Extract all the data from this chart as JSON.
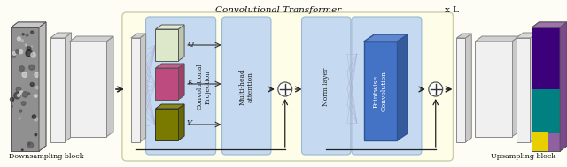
{
  "title": "Convolutional Transformer",
  "xl_label": "x L",
  "downsampling_label": "Downsampling block",
  "upsampling_label": "Upsampling block",
  "conv_proj_label": "Convolutional\nProjection",
  "multihead_label": "Multi-head\nattention",
  "norm_label": "Norm layer",
  "pointwise_label": "Pointwise\nConvolution",
  "q_label": "Q",
  "k_label": "K",
  "v_label": "V",
  "bg_color": "#FDFDF5",
  "transformer_box_color": "#FDFDE8",
  "transformer_box_edge": "#CCCCAA",
  "light_blue": "#C5D9F1",
  "light_blue_edge": "#9BB8D4",
  "blue_block_face": "#4472C4",
  "blue_block_edge": "#2F5496",
  "q_color": "#DDE8CB",
  "k_color": "#BE4B80",
  "v_color": "#7A7A00",
  "gray_slab": "#E0E0E0",
  "gray_slab_edge": "#888888",
  "white_slab": "#F0F0F0",
  "figsize": [
    6.4,
    1.89
  ],
  "dpi": 100
}
